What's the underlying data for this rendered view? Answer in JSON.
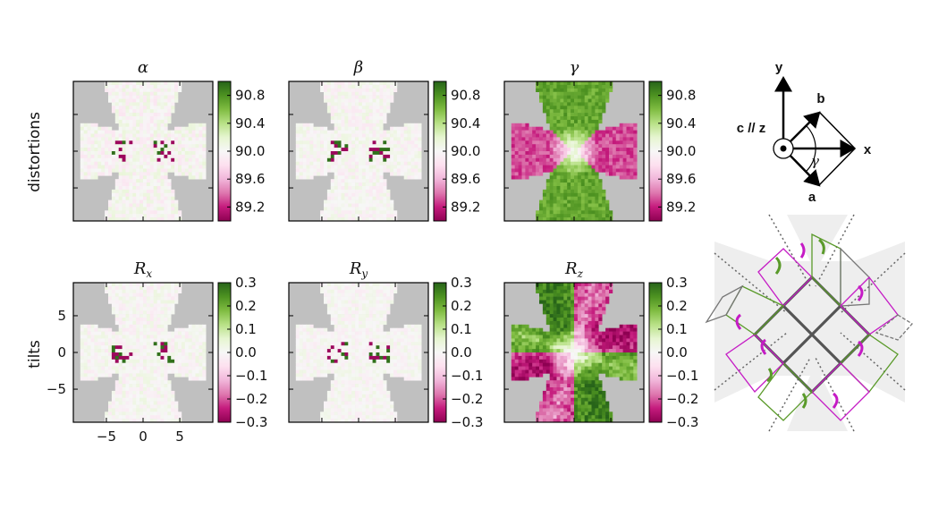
{
  "chart_data": {
    "type": "heatmap",
    "row_labels": [
      "distortions",
      "tilts"
    ],
    "panels": [
      {
        "id": "alpha",
        "title": "α",
        "title_sub": "",
        "row": 0,
        "col": 0,
        "variable": "alpha",
        "range": [
          89.0,
          91.0
        ],
        "amplitude": 0.15,
        "style": "speckle"
      },
      {
        "id": "beta",
        "title": "β",
        "title_sub": "",
        "row": 0,
        "col": 1,
        "variable": "beta",
        "range": [
          89.0,
          91.0
        ],
        "amplitude": 0.12,
        "style": "speckle"
      },
      {
        "id": "gamma",
        "title": "γ",
        "title_sub": "",
        "row": 0,
        "col": 2,
        "variable": "gamma",
        "range": [
          89.0,
          91.0
        ],
        "amplitude": 0.7,
        "style": "quadrant"
      },
      {
        "id": "rx",
        "title": "R",
        "title_sub": "x",
        "row": 1,
        "col": 0,
        "variable": "R_x",
        "range": [
          -0.3,
          0.3
        ],
        "amplitude": 0.12,
        "style": "speckle"
      },
      {
        "id": "ry",
        "title": "R",
        "title_sub": "y",
        "row": 1,
        "col": 1,
        "variable": "R_y",
        "range": [
          -0.3,
          0.3
        ],
        "amplitude": 0.1,
        "style": "speckle"
      },
      {
        "id": "rz",
        "title": "R",
        "title_sub": "z",
        "row": 1,
        "col": 2,
        "variable": "R_z",
        "range": [
          -0.3,
          0.3
        ],
        "amplitude": 0.9,
        "style": "rotation"
      }
    ],
    "colorbar_top": {
      "ticks": [
        "90.8",
        "90.4",
        "90.0",
        "89.6",
        "89.2"
      ],
      "values": [
        90.8,
        90.4,
        90.0,
        89.6,
        89.2
      ],
      "range": [
        89.0,
        91.0
      ]
    },
    "colorbar_bottom": {
      "ticks": [
        "0.3",
        "0.2",
        "0.1",
        "0.0",
        "−0.1",
        "−0.2",
        "−0.3"
      ],
      "values": [
        0.3,
        0.2,
        0.1,
        0.0,
        -0.1,
        -0.2,
        -0.3
      ],
      "range": [
        -0.3,
        0.3
      ]
    },
    "x_ticks": {
      "labels": [
        "−5",
        "0",
        "5"
      ],
      "values": [
        -5,
        0,
        5
      ]
    },
    "y_ticks": {
      "labels": [
        "5",
        "0",
        "−5"
      ],
      "values": [
        5,
        0,
        -5
      ]
    },
    "axis_range": [
      -9.5,
      9.5
    ],
    "colormap": "PiYG",
    "colors": {
      "pink_dark": "#8e0152",
      "pink": "#de77ae",
      "white": "#f7f7f7",
      "green": "#7fbc41",
      "green_dark": "#276419",
      "masked": "#c0c0c0"
    }
  },
  "diagram": {
    "labels": {
      "y": "y",
      "x": "x",
      "b": "b",
      "a": "a",
      "cz": "c // z",
      "gamma": "γ"
    },
    "colors": {
      "magenta": "#c51bc5",
      "green": "#5a9a2a",
      "grid": "#555555",
      "background": "#eeeeee"
    }
  }
}
